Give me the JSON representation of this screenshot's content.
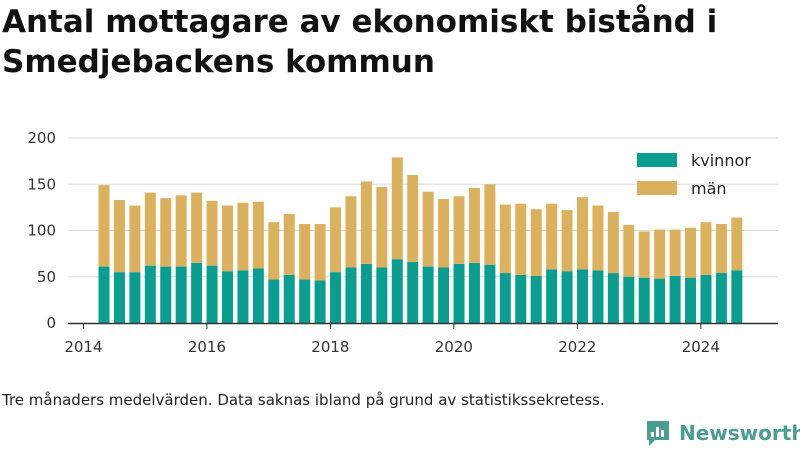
{
  "chart_data": {
    "type": "bar",
    "stacked": true,
    "title": "Antal mottagare av ekonomiskt bistånd i Smedjebackens kommun",
    "xlabel": "",
    "ylabel": "",
    "ylim": [
      0,
      200
    ],
    "yticks": [
      0,
      50,
      100,
      150,
      200
    ],
    "xlim": [
      "2013-10",
      "2025-04"
    ],
    "xticks": [
      "2014",
      "2016",
      "2018",
      "2020",
      "2022",
      "2024"
    ],
    "grid": true,
    "legend_position": "top-right",
    "dates": [
      "2014-05",
      "2014-08",
      "2014-11",
      "2015-02",
      "2015-05",
      "2015-08",
      "2015-11",
      "2016-02",
      "2016-05",
      "2016-08",
      "2016-11",
      "2017-02",
      "2017-05",
      "2017-08",
      "2017-11",
      "2018-02",
      "2018-05",
      "2018-08",
      "2018-11",
      "2019-02",
      "2019-05",
      "2019-08",
      "2019-11",
      "2020-02",
      "2020-05",
      "2020-08",
      "2020-11",
      "2021-02",
      "2021-05",
      "2021-08",
      "2021-11",
      "2022-02",
      "2022-05",
      "2022-08",
      "2022-11",
      "2023-02",
      "2023-05",
      "2023-08",
      "2023-11",
      "2024-02",
      "2024-05",
      "2024-08"
    ],
    "series": [
      {
        "name": "kvinnor",
        "color": "#0a9e91",
        "values": [
          61,
          55,
          55,
          62,
          61,
          61,
          65,
          62,
          56,
          57,
          59,
          47,
          52,
          47,
          46,
          55,
          60,
          64,
          60,
          69,
          66,
          61,
          60,
          64,
          65,
          63,
          54,
          52,
          51,
          58,
          56,
          58,
          57,
          54,
          50,
          49,
          48,
          51,
          49,
          52,
          54,
          57
        ]
      },
      {
        "name": "män",
        "color": "#dbb15e",
        "values": [
          88,
          78,
          72,
          79,
          74,
          77,
          76,
          70,
          71,
          73,
          72,
          62,
          66,
          60,
          61,
          70,
          77,
          89,
          87,
          110,
          94,
          81,
          74,
          73,
          81,
          87,
          74,
          77,
          72,
          71,
          66,
          78,
          70,
          66,
          56,
          50,
          53,
          50,
          54,
          57,
          53,
          57
        ]
      }
    ]
  },
  "footnote": "Tre månaders medelvärden. Data saknas ibland på grund av statistikssekretess.",
  "brand": {
    "name": "Newsworthy",
    "icon": "bar-chart-speech-bubble-icon",
    "color": "#4a9e91"
  },
  "colors": {
    "axis": "#333333",
    "grid": "#dddddd",
    "text": "#222222"
  }
}
